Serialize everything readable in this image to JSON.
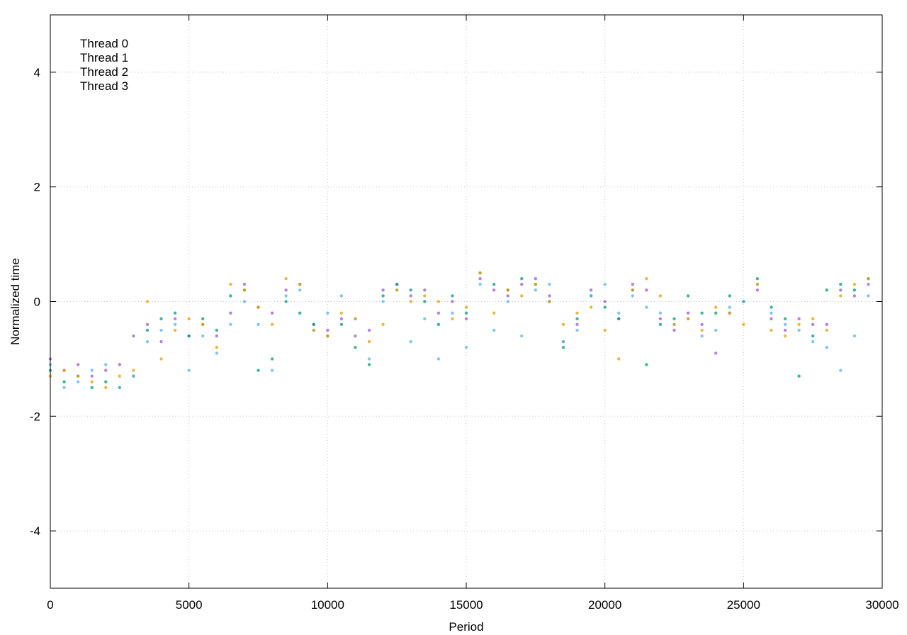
{
  "chart_data": {
    "type": "scatter",
    "title": "",
    "xlabel": "Period",
    "ylabel": "Normalized time",
    "xlim": [
      0,
      30000
    ],
    "ylim": [
      -5,
      5
    ],
    "xticks": [
      0,
      5000,
      10000,
      15000,
      20000,
      25000,
      30000
    ],
    "yticks": [
      -4,
      -2,
      0,
      2,
      4
    ],
    "grid": true,
    "legend_position": "top-left",
    "series": [
      {
        "name": "Thread 0",
        "color": "#9b59d0",
        "x": [
          0,
          500,
          1000,
          1500,
          2000,
          2500,
          3000,
          3500,
          4000,
          4500,
          5000,
          5500,
          6000,
          6500,
          7000,
          7500,
          8000,
          8500,
          9000,
          9500,
          10000,
          10500,
          11000,
          11500,
          12000,
          12500,
          13000,
          13500,
          14000,
          14500,
          15000,
          15500,
          16000,
          16500,
          17000,
          17500,
          18000,
          18500,
          19000,
          19500,
          20000,
          20500,
          21000,
          21500,
          22000,
          22500,
          23000,
          23500,
          24000,
          24500,
          25000,
          25500,
          26000,
          26500,
          27000,
          27500,
          28000,
          28500,
          29000,
          29500
        ],
        "y": [
          -1.0,
          -1.2,
          -1.1,
          -1.3,
          -1.2,
          -1.1,
          -0.6,
          -0.4,
          -0.7,
          -0.3,
          -0.6,
          -0.4,
          -0.6,
          -0.2,
          0.3,
          -0.1,
          -0.2,
          0.2,
          0.3,
          -0.4,
          -0.5,
          -0.3,
          -0.6,
          -0.5,
          0.2,
          0.3,
          0.1,
          0.2,
          -0.2,
          0.0,
          -0.3,
          0.4,
          0.2,
          0.1,
          0.3,
          0.4,
          0.1,
          -0.7,
          -0.4,
          0.2,
          0.0,
          -0.3,
          0.3,
          0.2,
          -0.3,
          -0.5,
          -0.2,
          -0.4,
          -0.9,
          -0.2,
          0.0,
          0.2,
          -0.3,
          -0.5,
          -0.3,
          -0.4,
          -0.4,
          0.2,
          0.1,
          0.3
        ]
      },
      {
        "name": "Thread 1",
        "color": "#009e73",
        "x": [
          0,
          500,
          1000,
          1500,
          2000,
          2500,
          3000,
          3500,
          4000,
          4500,
          5000,
          5500,
          6000,
          6500,
          7000,
          7500,
          8000,
          8500,
          9000,
          9500,
          10000,
          10500,
          11000,
          11500,
          12000,
          12500,
          13000,
          13500,
          14000,
          14500,
          15000,
          15500,
          16000,
          16500,
          17000,
          17500,
          18000,
          18500,
          19000,
          19500,
          20000,
          20500,
          21000,
          21500,
          22000,
          22500,
          23000,
          23500,
          24000,
          24500,
          25000,
          25500,
          26000,
          26500,
          27000,
          27500,
          28000,
          28500,
          29000,
          29500
        ],
        "y": [
          -1.2,
          -1.4,
          -1.3,
          -1.5,
          -1.4,
          -1.5,
          -1.3,
          -0.5,
          -0.3,
          -0.2,
          -0.6,
          -0.3,
          -0.5,
          0.1,
          0.2,
          -1.2,
          -1.0,
          0.0,
          -0.2,
          -0.4,
          -0.6,
          -0.4,
          -0.8,
          -1.1,
          0.1,
          0.3,
          0.2,
          0.0,
          -0.4,
          0.1,
          -0.2,
          0.5,
          0.3,
          0.2,
          0.4,
          0.3,
          0.0,
          -0.8,
          -0.3,
          0.1,
          -0.1,
          -0.3,
          0.2,
          -1.1,
          -0.4,
          -0.3,
          0.1,
          -0.2,
          -0.2,
          0.1,
          0.0,
          0.4,
          -0.1,
          -0.3,
          -1.3,
          -0.6,
          0.2,
          0.3,
          0.2,
          0.4
        ]
      },
      {
        "name": "Thread 2",
        "color": "#56b4e9",
        "x": [
          0,
          500,
          1000,
          1500,
          2000,
          2500,
          3000,
          3500,
          4000,
          4500,
          5000,
          5500,
          6000,
          6500,
          7000,
          7500,
          8000,
          8500,
          9000,
          9500,
          10000,
          10500,
          11000,
          11500,
          12000,
          12500,
          13000,
          13500,
          14000,
          14500,
          15000,
          15500,
          16000,
          16500,
          17000,
          17500,
          18000,
          18500,
          19000,
          19500,
          20000,
          20500,
          21000,
          21500,
          22000,
          22500,
          23000,
          23500,
          24000,
          24500,
          25000,
          25500,
          26000,
          26500,
          27000,
          27500,
          28000,
          28500,
          29000,
          29500
        ],
        "y": [
          -1.1,
          -1.5,
          -1.4,
          -1.2,
          -1.1,
          -1.5,
          -1.3,
          -0.7,
          -0.5,
          -0.4,
          -1.2,
          -0.6,
          -0.9,
          -0.4,
          0.0,
          -0.4,
          -1.2,
          0.1,
          0.2,
          -0.5,
          -0.2,
          0.1,
          -0.3,
          -1.0,
          0.0,
          0.2,
          -0.7,
          -0.3,
          -1.0,
          -0.2,
          -0.8,
          0.3,
          -0.5,
          0.0,
          -0.6,
          0.2,
          0.3,
          -0.7,
          -0.5,
          0.1,
          0.3,
          -0.2,
          0.1,
          -0.1,
          -0.2,
          -0.4,
          -0.3,
          -0.6,
          -0.5,
          -0.1,
          0.0,
          0.3,
          -0.2,
          -0.4,
          -0.5,
          -0.7,
          -0.8,
          -1.2,
          -0.6,
          0.1
        ]
      },
      {
        "name": "Thread 3",
        "color": "#e69f00",
        "x": [
          0,
          500,
          1000,
          1500,
          2000,
          2500,
          3000,
          3500,
          4000,
          4500,
          5000,
          5500,
          6000,
          6500,
          7000,
          7500,
          8000,
          8500,
          9000,
          9500,
          10000,
          10500,
          11000,
          11500,
          12000,
          12500,
          13000,
          13500,
          14000,
          14500,
          15000,
          15500,
          16000,
          16500,
          17000,
          17500,
          18000,
          18500,
          19000,
          19500,
          20000,
          20500,
          21000,
          21500,
          22000,
          22500,
          23000,
          23500,
          24000,
          24500,
          25000,
          25500,
          26000,
          26500,
          27000,
          27500,
          28000,
          28500,
          29000,
          29500
        ],
        "y": [
          -1.3,
          -1.2,
          -1.3,
          -1.4,
          -1.5,
          -1.3,
          -1.2,
          0.0,
          -1.0,
          -0.5,
          -0.3,
          -0.4,
          -0.8,
          0.3,
          0.2,
          -0.1,
          -0.4,
          0.4,
          0.3,
          -0.5,
          -0.6,
          -0.2,
          -0.3,
          -0.7,
          -0.4,
          0.2,
          0.0,
          0.1,
          0.0,
          -0.3,
          -0.1,
          0.5,
          -0.2,
          0.2,
          0.1,
          0.3,
          0.0,
          -0.4,
          -0.2,
          -0.1,
          -0.5,
          -1.0,
          0.2,
          0.4,
          0.1,
          -0.4,
          -0.3,
          -0.5,
          -0.1,
          -0.2,
          -0.4,
          0.3,
          -0.5,
          -0.6,
          -0.4,
          -0.3,
          -0.5,
          0.1,
          0.3,
          0.4
        ]
      }
    ]
  }
}
